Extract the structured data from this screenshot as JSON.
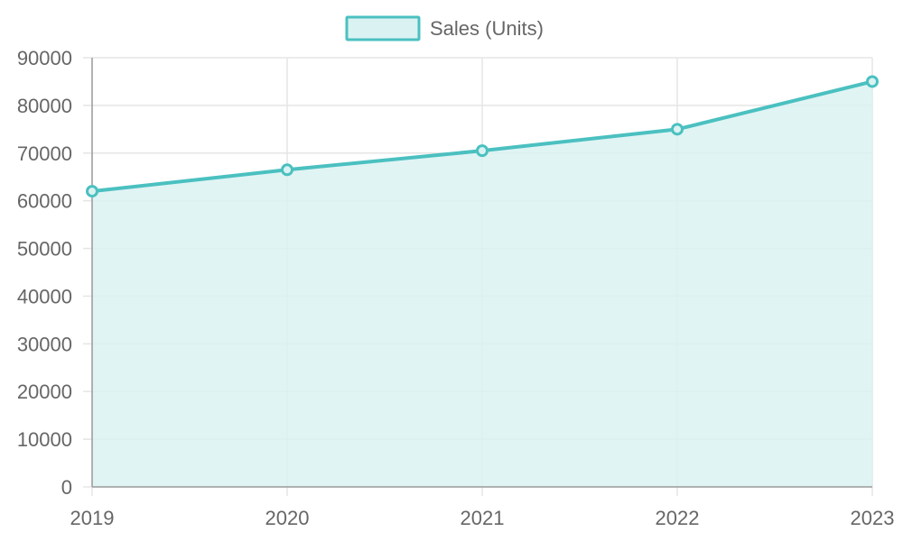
{
  "chart_data": {
    "type": "area",
    "categories": [
      "2019",
      "2020",
      "2021",
      "2022",
      "2023"
    ],
    "series": [
      {
        "name": "Sales (Units)",
        "values": [
          62000,
          66500,
          70500,
          75000,
          85000
        ]
      }
    ],
    "ylim": [
      0,
      90000
    ],
    "yticks": [
      "0",
      "10000",
      "20000",
      "30000",
      "40000",
      "50000",
      "60000",
      "70000",
      "80000",
      "90000"
    ],
    "grid": true,
    "legend_position": "top-center",
    "colors": {
      "line": "#4bc0c0",
      "fill": "#dbf2f2",
      "grid": "#e5e5e5",
      "axis": "#999999",
      "text": "#666666"
    }
  }
}
